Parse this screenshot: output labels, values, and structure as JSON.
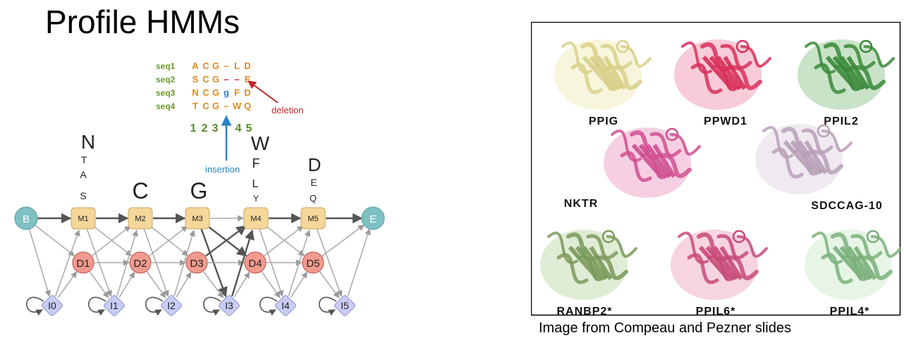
{
  "title": "Profile HMMs",
  "alignment": {
    "rows": [
      {
        "name": "seq1",
        "residues": [
          "A",
          "C",
          "G",
          "–",
          "L",
          "D"
        ]
      },
      {
        "name": "seq2",
        "residues": [
          "S",
          "C",
          "G",
          "–",
          "–",
          "E"
        ]
      },
      {
        "name": "seq3",
        "residues": [
          "N",
          "C",
          "G",
          "g",
          "F",
          "D"
        ]
      },
      {
        "name": "seq4",
        "residues": [
          "T",
          "C",
          "G",
          "–",
          "W",
          "Q"
        ]
      }
    ],
    "column_numbers": [
      "1",
      "2",
      "3",
      "4",
      "5"
    ],
    "deletion_label": "deletion",
    "insertion_label": "insertion"
  },
  "emissions": [
    {
      "state": "M1",
      "letters": [
        "N",
        "T",
        "A",
        "S"
      ]
    },
    {
      "state": "M2",
      "letters": [
        "C"
      ]
    },
    {
      "state": "M3",
      "letters": [
        "G"
      ]
    },
    {
      "state": "M4",
      "letters": [
        "W",
        "F",
        "L",
        "Y"
      ]
    },
    {
      "state": "M5",
      "letters": [
        "D",
        "E",
        "Q"
      ]
    }
  ],
  "states": {
    "begin": "B",
    "end": "E",
    "match": [
      "M1",
      "M2",
      "M3",
      "M4",
      "M5"
    ],
    "delete": [
      "D1",
      "D2",
      "D3",
      "D4",
      "D5"
    ],
    "insert": [
      "I0",
      "I1",
      "I2",
      "I3",
      "I4",
      "I5"
    ]
  },
  "proteins": [
    "PPIG",
    "PPWD1",
    "PPIL2",
    "NKTR",
    "SDCCAG-10",
    "RANBP2*",
    "PPIL6*",
    "PPIL4*"
  ],
  "caption": "Image from Compeau and Pezner slides",
  "colors": {
    "match_fill": "#f5d79a",
    "delete_fill": "#f29a8e",
    "insert_fill": "#c9ccf4",
    "end_fill": "#7fc0c3",
    "seq_name": "#6a9a2a",
    "residue": "#e08a1e",
    "deletion": "#c0282c",
    "insertion": "#2a84c4",
    "column_numbers": "#5a8a2a"
  }
}
